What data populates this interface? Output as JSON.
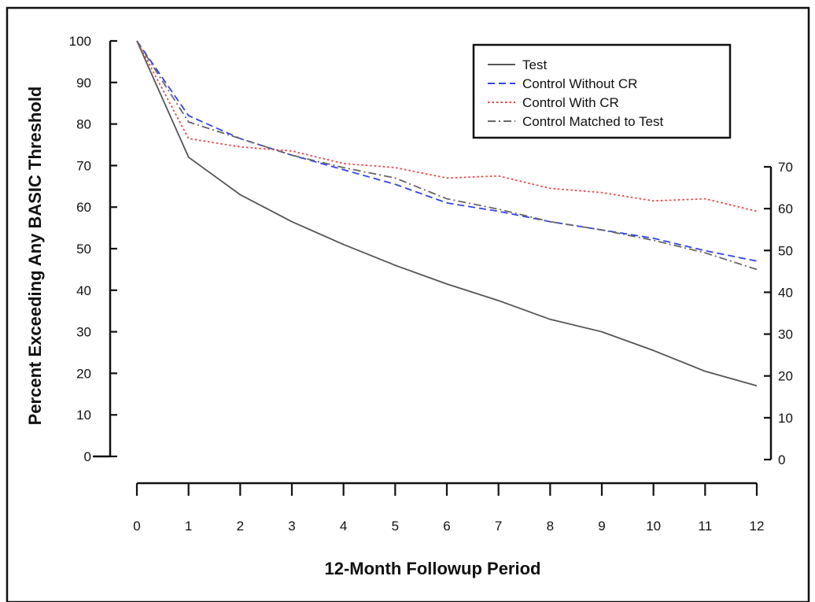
{
  "chart_data": {
    "type": "line",
    "title": "",
    "xlabel": "12-Month Followup Period",
    "ylabel": "Percent Exceeding Any BASIC Threshold",
    "x": [
      0,
      1,
      2,
      3,
      4,
      5,
      6,
      7,
      8,
      9,
      10,
      11,
      12
    ],
    "xlim": [
      0,
      12
    ],
    "ylim": [
      0,
      100
    ],
    "y_ticks": [
      "0",
      "10",
      "20",
      "30",
      "40",
      "50",
      "60",
      "70",
      "80",
      "90",
      "100"
    ],
    "x_ticks": [
      "0",
      "1",
      "2",
      "3",
      "4",
      "5",
      "6",
      "7",
      "8",
      "9",
      "10",
      "11",
      "12"
    ],
    "right_axis_ticks": [
      "0",
      "10",
      "20",
      "30",
      "40",
      "50",
      "60",
      "70"
    ],
    "right_ylim": [
      0,
      70
    ],
    "grid": false,
    "legend_position": "top-right",
    "series": [
      {
        "name": "Test",
        "values": [
          100,
          72,
          63,
          56.5,
          51,
          46,
          41.5,
          37.5,
          33,
          30,
          25.5,
          20.5,
          17
        ],
        "color": "#555555",
        "dash": "solid"
      },
      {
        "name": "Control Without CR",
        "values": [
          100,
          82,
          76.5,
          72.5,
          69,
          65.5,
          61,
          59,
          56.5,
          54.5,
          52.5,
          49.5,
          47
        ],
        "color": "#3344ee",
        "dash": "dashed"
      },
      {
        "name": "Control With CR",
        "values": [
          100,
          76.5,
          74.5,
          73.5,
          70.5,
          69.5,
          67,
          67.5,
          64.5,
          63.5,
          61.5,
          62,
          59
        ],
        "color": "#ee4444",
        "dash": "dotted"
      },
      {
        "name": "Control Matched to Test",
        "values": [
          100,
          80.5,
          76.5,
          72.5,
          69.5,
          67,
          62,
          59.5,
          56.5,
          54.5,
          52,
          49,
          45
        ],
        "color": "#666666",
        "dash": "dashdot"
      }
    ]
  }
}
